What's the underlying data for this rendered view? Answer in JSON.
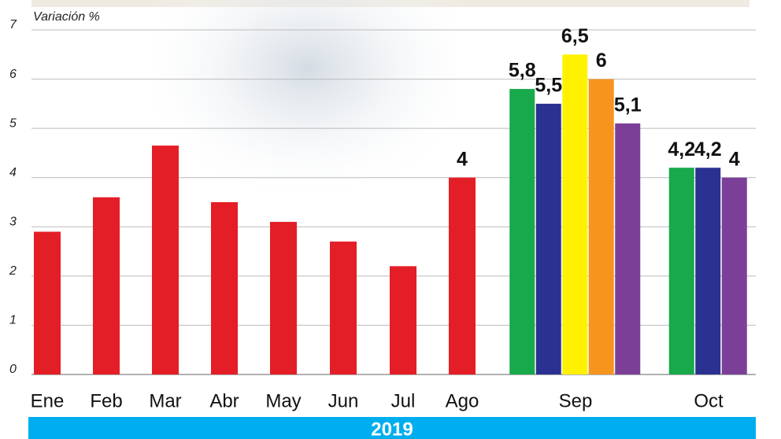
{
  "chart_data": {
    "type": "bar",
    "y_label": "Variación %",
    "footer": "2019",
    "ylim": [
      0,
      7
    ],
    "yticks": [
      0,
      1,
      2,
      3,
      4,
      5,
      6,
      7
    ],
    "grid": true,
    "groups": [
      {
        "category": "Ene",
        "values": [
          2.9
        ],
        "colors": [
          "#e41e26"
        ]
      },
      {
        "category": "Feb",
        "values": [
          3.6
        ],
        "colors": [
          "#e41e26"
        ]
      },
      {
        "category": "Mar",
        "values": [
          4.65
        ],
        "colors": [
          "#e41e26"
        ]
      },
      {
        "category": "Abr",
        "values": [
          3.5
        ],
        "colors": [
          "#e41e26"
        ]
      },
      {
        "category": "May",
        "values": [
          3.1
        ],
        "colors": [
          "#e41e26"
        ]
      },
      {
        "category": "Jun",
        "values": [
          2.7
        ],
        "colors": [
          "#e41e26"
        ]
      },
      {
        "category": "Jul",
        "values": [
          2.2
        ],
        "colors": [
          "#e41e26"
        ]
      },
      {
        "category": "Ago",
        "values": [
          4
        ],
        "value_labels": [
          "4"
        ],
        "colors": [
          "#e41e26"
        ]
      },
      {
        "category": "Sep",
        "values": [
          5.8,
          5.5,
          6.5,
          6,
          5.1
        ],
        "value_labels": [
          "5,8",
          "5,5",
          "6,5",
          "6",
          "5,1"
        ],
        "colors": [
          "#17a94a",
          "#2a3190",
          "#fff200",
          "#f7941d",
          "#7c3f98"
        ]
      },
      {
        "category": "Oct",
        "values": [
          4.2,
          4.2,
          4
        ],
        "value_labels": [
          "4,2",
          "4,2",
          "4"
        ],
        "colors": [
          "#17a94a",
          "#2a3190",
          "#7c3f98"
        ]
      }
    ]
  }
}
